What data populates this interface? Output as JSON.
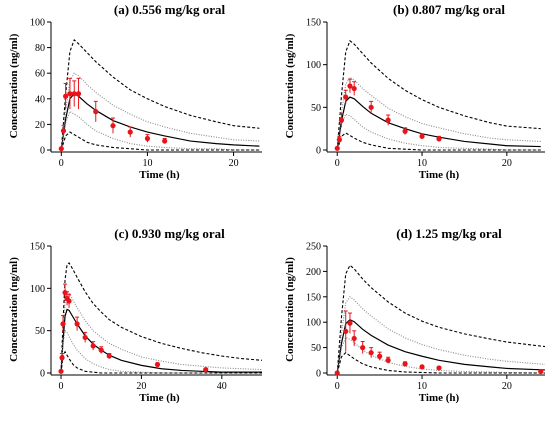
{
  "chart_data": [
    {
      "type": "line",
      "title": "(a) 0.556 mg/kg oral",
      "xlabel": "Time (h)",
      "ylabel": "Concentration (ng/ml)",
      "xlim": [
        -0.5,
        23.3
      ],
      "xticks": [
        0,
        10,
        20
      ],
      "ylim": [
        0,
        100
      ],
      "yticks": [
        0,
        20,
        40,
        60,
        80,
        100
      ],
      "x": [
        0,
        0.5,
        1,
        1.5,
        2,
        3,
        4,
        6,
        8,
        10,
        12,
        15,
        18,
        20,
        23
      ],
      "series": [
        {
          "color": "#000000",
          "style": "dashed",
          "values": [
            0,
            43,
            77,
            86,
            83,
            76,
            69,
            57,
            47,
            40,
            34,
            27,
            22,
            19,
            17
          ]
        },
        {
          "color": "#888888",
          "style": "dotted",
          "values": [
            0,
            31,
            54,
            60,
            58,
            51,
            45,
            35,
            28,
            22,
            18,
            13,
            10,
            8,
            7
          ]
        },
        {
          "color": "#000000",
          "style": "solid",
          "values": [
            0,
            24,
            40,
            44,
            42,
            36,
            31,
            23,
            18,
            14,
            11,
            7,
            5,
            4,
            3
          ]
        },
        {
          "color": "#888888",
          "style": "dotted",
          "values": [
            0,
            21,
            30,
            28,
            26,
            20,
            15,
            9,
            5,
            3,
            2,
            1,
            1,
            0,
            0
          ]
        },
        {
          "color": "#000000",
          "style": "dashed",
          "values": [
            0,
            11,
            14,
            12,
            10,
            6,
            4,
            2,
            1,
            0,
            0,
            0,
            0,
            0,
            0
          ]
        }
      ],
      "observed": {
        "color": "#e8141b",
        "x": [
          0,
          0.25,
          0.5,
          1,
          1.5,
          2,
          4,
          6,
          8,
          10,
          12
        ],
        "values": [
          1,
          15,
          42,
          44,
          44,
          44,
          30,
          19,
          14,
          9,
          7
        ],
        "errors": [
          1,
          4,
          10,
          12,
          10,
          12,
          8,
          6,
          4,
          3,
          2
        ]
      }
    },
    {
      "type": "line",
      "title": "(b) 0.807 mg/kg oral",
      "xlabel": "Time (h)",
      "ylabel": "Concentration (ng/ml)",
      "xlim": [
        -0.5,
        24.5
      ],
      "xticks": [
        0,
        10,
        20
      ],
      "ylim": [
        0,
        150
      ],
      "yticks": [
        0,
        50,
        100,
        150
      ],
      "x": [
        0,
        0.5,
        1,
        1.5,
        2,
        3,
        4,
        6,
        8,
        10,
        12,
        15,
        18,
        20,
        24
      ],
      "series": [
        {
          "color": "#000000",
          "style": "dashed",
          "values": [
            0,
            64,
            115,
            128,
            124,
            113,
            102,
            84,
            70,
            59,
            50,
            40,
            32,
            28,
            25
          ]
        },
        {
          "color": "#888888",
          "style": "dotted",
          "values": [
            0,
            44,
            77,
            85,
            82,
            72,
            64,
            49,
            39,
            31,
            26,
            19,
            14,
            12,
            10
          ]
        },
        {
          "color": "#000000",
          "style": "solid",
          "values": [
            0,
            34,
            57,
            62,
            60,
            51,
            43,
            32,
            25,
            19,
            15,
            10,
            7,
            5,
            4
          ]
        },
        {
          "color": "#888888",
          "style": "dotted",
          "values": [
            0,
            29,
            42,
            40,
            36,
            27,
            21,
            13,
            8,
            5,
            3,
            2,
            1,
            0,
            0
          ]
        },
        {
          "color": "#000000",
          "style": "dashed",
          "values": [
            0,
            16,
            20,
            17,
            14,
            9,
            6,
            2,
            1,
            0,
            0,
            0,
            0,
            0,
            0
          ]
        }
      ],
      "observed": {
        "color": "#e8141b",
        "x": [
          0,
          0.25,
          0.5,
          1,
          1.5,
          2,
          4,
          6,
          8,
          10,
          12
        ],
        "values": [
          2,
          12,
          35,
          62,
          75,
          72,
          50,
          35,
          22,
          16,
          13
        ],
        "errors": [
          1,
          4,
          8,
          8,
          8,
          8,
          7,
          6,
          4,
          3,
          3
        ]
      }
    },
    {
      "type": "line",
      "title": "(c) 0.930 mg/kg oral",
      "xlabel": "Time (h)",
      "ylabel": "Concentration (ng/ml)",
      "xlim": [
        -1,
        50
      ],
      "xticks": [
        0,
        20,
        40
      ],
      "ylim": [
        0,
        150
      ],
      "yticks": [
        0,
        50,
        100,
        150
      ],
      "x": [
        0,
        0.5,
        1,
        1.5,
        2,
        3,
        4,
        6,
        8,
        10,
        12,
        15,
        20,
        25,
        30,
        35,
        40,
        45,
        50
      ],
      "series": [
        {
          "color": "#000000",
          "style": "dashed",
          "values": [
            0,
            60,
            110,
            128,
            130,
            122,
            113,
            96,
            82,
            72,
            63,
            54,
            43,
            35,
            29,
            24,
            20,
            17,
            15
          ]
        },
        {
          "color": "#888888",
          "style": "dotted",
          "values": [
            0,
            45,
            82,
            95,
            94,
            86,
            77,
            62,
            50,
            42,
            35,
            28,
            19,
            14,
            10,
            8,
            6,
            5,
            4
          ]
        },
        {
          "color": "#000000",
          "style": "solid",
          "values": [
            0,
            38,
            67,
            75,
            74,
            66,
            58,
            44,
            34,
            27,
            21,
            15,
            9,
            5,
            3,
            2,
            1,
            1,
            1
          ]
        },
        {
          "color": "#888888",
          "style": "dotted",
          "values": [
            0,
            35,
            50,
            48,
            43,
            34,
            27,
            17,
            11,
            7,
            4,
            2,
            1,
            0,
            0,
            0,
            0,
            0,
            0
          ]
        },
        {
          "color": "#000000",
          "style": "dashed",
          "values": [
            0,
            20,
            25,
            21,
            17,
            10,
            6,
            2,
            1,
            0,
            0,
            0,
            0,
            0,
            0,
            0,
            0,
            0,
            0
          ]
        }
      ],
      "observed": {
        "color": "#e8141b",
        "x": [
          0,
          0.25,
          0.5,
          1,
          1.5,
          2,
          4,
          6,
          8,
          10,
          12,
          24,
          36
        ],
        "values": [
          2,
          18,
          58,
          95,
          88,
          85,
          58,
          42,
          32,
          27,
          20,
          10,
          4
        ],
        "errors": [
          1,
          5,
          10,
          10,
          8,
          8,
          8,
          6,
          5,
          4,
          3,
          2,
          1
        ]
      }
    },
    {
      "type": "line",
      "title": "(d) 1.25 mg/kg oral",
      "xlabel": "Time (h)",
      "ylabel": "Concentration (ng/ml)",
      "xlim": [
        -0.5,
        24.5
      ],
      "xticks": [
        0,
        10,
        20
      ],
      "ylim": [
        0,
        250
      ],
      "yticks": [
        0,
        50,
        100,
        150,
        200,
        250
      ],
      "x": [
        0,
        0.5,
        1,
        1.5,
        2,
        3,
        4,
        6,
        8,
        10,
        12,
        15,
        18,
        20,
        24.5
      ],
      "series": [
        {
          "color": "#000000",
          "style": "dashed",
          "values": [
            0,
            110,
            195,
            212,
            205,
            185,
            168,
            140,
            118,
            102,
            90,
            77,
            67,
            61,
            52
          ]
        },
        {
          "color": "#888888",
          "style": "dotted",
          "values": [
            0,
            78,
            138,
            150,
            144,
            126,
            112,
            87,
            69,
            56,
            46,
            35,
            27,
            23,
            17
          ]
        },
        {
          "color": "#000000",
          "style": "solid",
          "values": [
            0,
            58,
            97,
            105,
            101,
            86,
            74,
            55,
            42,
            33,
            25,
            17,
            12,
            9,
            6
          ]
        },
        {
          "color": "#888888",
          "style": "dotted",
          "values": [
            0,
            49,
            70,
            66,
            60,
            45,
            35,
            21,
            13,
            8,
            5,
            3,
            2,
            1,
            0
          ]
        },
        {
          "color": "#000000",
          "style": "dashed",
          "values": [
            0,
            32,
            40,
            34,
            28,
            18,
            12,
            5,
            2,
            1,
            0,
            0,
            0,
            0,
            0
          ]
        }
      ],
      "observed": {
        "color": "#e8141b",
        "x": [
          0,
          1,
          1.5,
          2,
          3,
          4,
          5,
          6,
          8,
          10,
          12,
          24
        ],
        "values": [
          0,
          82,
          98,
          68,
          50,
          40,
          33,
          25,
          18,
          12,
          10,
          3
        ],
        "errors": [
          1,
          40,
          20,
          15,
          12,
          10,
          8,
          6,
          4,
          3,
          2,
          1
        ]
      }
    }
  ]
}
